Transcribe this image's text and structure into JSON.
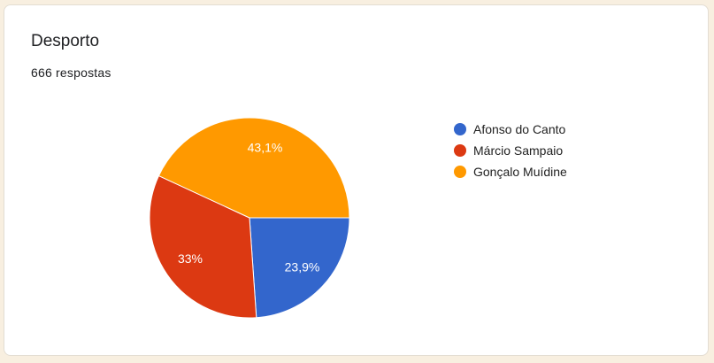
{
  "card": {
    "title": "Desporto",
    "responses": "666 respostas"
  },
  "chart_data": {
    "type": "pie",
    "title": "",
    "categories": [
      "Afonso do Canto",
      "Márcio Sampaio",
      "Gonçalo Muídine"
    ],
    "values": [
      23.9,
      33,
      43.1
    ],
    "labels": [
      "23,9%",
      "33%",
      "43,1%"
    ],
    "colors": [
      "#3366cc",
      "#dc3912",
      "#ff9900"
    ],
    "legend": "right"
  }
}
